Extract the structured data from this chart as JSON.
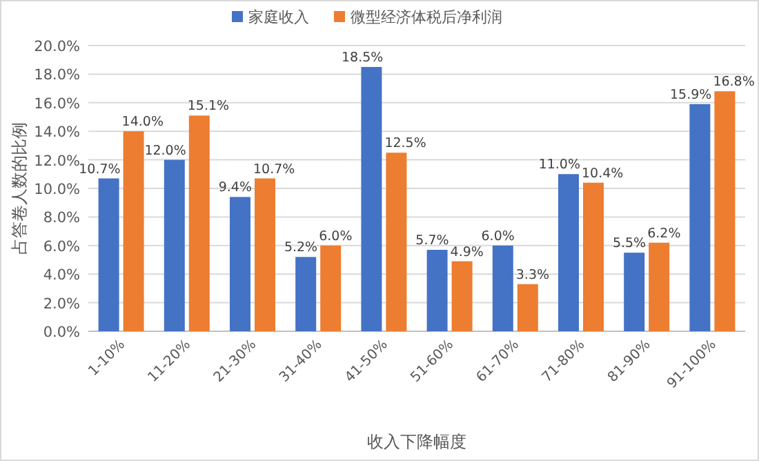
{
  "chart_data": {
    "type": "bar",
    "xlabel": "收入下降幅度",
    "ylabel": "占答卷人数的比例",
    "categories": [
      "1-10%",
      "11-20%",
      "21-30%",
      "31-40%",
      "41-50%",
      "51-60%",
      "61-70%",
      "71-80%",
      "81-90%",
      "91-100%"
    ],
    "series": [
      {
        "name": "家庭收入",
        "color": "#4472c4",
        "values": [
          10.7,
          12.0,
          9.4,
          5.2,
          18.5,
          5.7,
          6.0,
          11.0,
          5.5,
          15.9
        ],
        "value_labels": [
          "10.7%",
          "12.0%",
          "9.4%",
          "5.2%",
          "18.5%",
          "5.7%",
          "6.0%",
          "11.0%",
          "5.5%",
          "15.9%"
        ]
      },
      {
        "name": "微型经济体税后净利润",
        "color": "#ed7d31",
        "values": [
          14.0,
          15.1,
          10.7,
          6.0,
          12.5,
          4.9,
          3.3,
          10.4,
          6.2,
          16.8
        ],
        "value_labels": [
          "14.0%",
          "15.1%",
          "10.7%",
          "6.0%",
          "12.5%",
          "4.9%",
          "3.3%",
          "10.4%",
          "6.2%",
          "16.8%"
        ]
      }
    ],
    "ylim": [
      0,
      20
    ],
    "yticks": [
      {
        "value": 0,
        "label": "0.0%"
      },
      {
        "value": 2,
        "label": "2.0%"
      },
      {
        "value": 4,
        "label": "4.0%"
      },
      {
        "value": 6,
        "label": "6.0%"
      },
      {
        "value": 8,
        "label": "8.0%"
      },
      {
        "value": 10,
        "label": "10.0%"
      },
      {
        "value": 12,
        "label": "12.0%"
      },
      {
        "value": 14,
        "label": "14.0%"
      },
      {
        "value": 16,
        "label": "16.0%"
      },
      {
        "value": 18,
        "label": "18.0%"
      },
      {
        "value": 20,
        "label": "20.0%"
      }
    ],
    "grid": "y",
    "legend": "top"
  }
}
